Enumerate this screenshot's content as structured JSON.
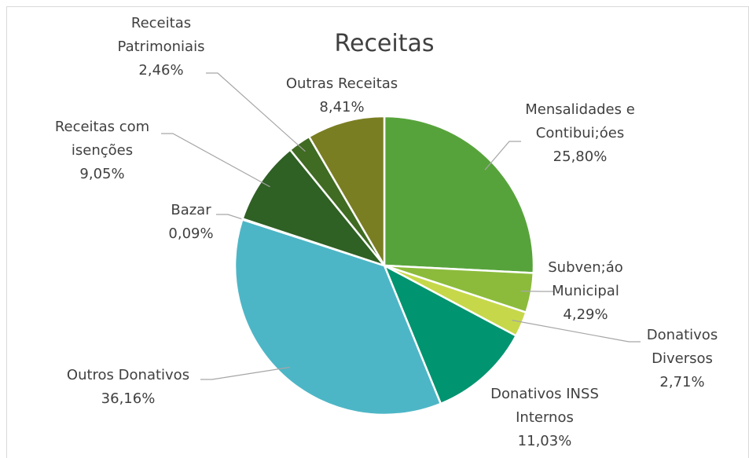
{
  "chart_data": {
    "type": "pie",
    "title": "Receitas",
    "categories": [
      "Mensalidades e Contibui;óes",
      "Subven;áo Municipal",
      "Donativos Diversos",
      "Donativos INSS Internos",
      "Outros Donativos",
      "Bazar",
      "Receitas com isenções",
      "Receitas Patrimoniais",
      "Outras Receitas"
    ],
    "values": [
      25.8,
      4.29,
      2.71,
      11.03,
      36.16,
      0.09,
      9.05,
      2.46,
      8.41
    ],
    "value_labels": [
      "25,80%",
      "4,29%",
      "2,71%",
      "11,03%",
      "36,16%",
      "0,09%",
      "9,05%",
      "2,46%",
      "8,41%"
    ],
    "colors": [
      "#57a33b",
      "#8cbb3c",
      "#c6d84a",
      "#009470",
      "#4db6c6",
      "#1f4f2c",
      "#2f6024",
      "#3f6b22",
      "#7a7e22"
    ]
  }
}
